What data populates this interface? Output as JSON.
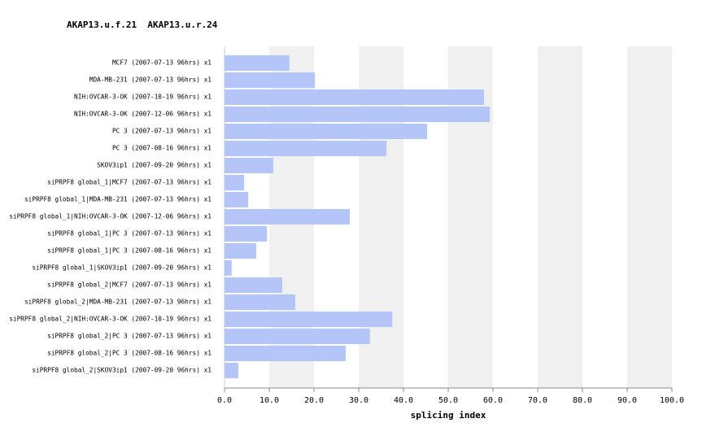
{
  "chart_data": {
    "type": "barh",
    "title": "AKAP13.u.f.21  AKAP13.u.r.24",
    "xlabel": "splicing index",
    "categories": [
      "MCF7 (2007-07-13 96hrs) x1",
      "MDA-MB-231 (2007-07-13 96hrs) x1",
      "NIH:OVCAR-3-OK (2007-10-19 96hrs) x1",
      "NIH:OVCAR-3-OK (2007-12-06 96hrs) x1",
      "PC 3 (2007-07-13 96hrs) x1",
      "PC 3 (2007-08-16 96hrs) x1",
      "SKOV3ip1 (2007-09-20 96hrs) x1",
      "siPRPF8 global_1|MCF7 (2007-07-13 96hrs) x1",
      "siPRPF8 global_1|MDA-MB-231 (2007-07-13 96hrs) x1",
      "siPRPF8 global_1|NIH:OVCAR-3-OK (2007-12-06 96hrs) x1",
      "siPRPF8 global_1|PC 3 (2007-07-13 96hrs) x1",
      "siPRPF8 global_1|PC 3 (2007-08-16 96hrs) x1",
      "siPRPF8 global_1|SKOV3ip1 (2007-09-20 96hrs) x1",
      "siPRPF8 global_2|MCF7 (2007-07-13 96hrs) x1",
      "siPRPF8 global_2|MDA-MB-231 (2007-07-13 96hrs) x1",
      "siPRPF8 global_2|NIH:OVCAR-3-OK (2007-10-19 96hrs) x1",
      "siPRPF8 global_2|PC 3 (2007-07-13 96hrs) x1",
      "siPRPF8 global_2|PC 3 (2007-08-16 96hrs) x1",
      "siPRPF8 global_2|SKOV3ip1 (2007-09-20 96hrs) x1"
    ],
    "values": [
      14.5,
      20.2,
      58.0,
      59.3,
      45.3,
      36.2,
      10.9,
      4.4,
      5.3,
      28.0,
      9.5,
      7.1,
      1.6,
      12.9,
      15.8,
      37.5,
      32.5,
      27.1,
      3.1
    ],
    "color": "#b3c6f7",
    "grid_color": "#f0f0f0",
    "grid": true,
    "xlim": [
      0,
      100
    ],
    "xticks": [
      {
        "value": 0,
        "label": "0.0"
      },
      {
        "value": 10,
        "label": "10.0"
      },
      {
        "value": 20,
        "label": "20.0"
      },
      {
        "value": 30,
        "label": "30.0"
      },
      {
        "value": 40,
        "label": "40.0"
      },
      {
        "value": 50,
        "label": "50.0"
      },
      {
        "value": 60,
        "label": "60.0"
      },
      {
        "value": 70,
        "label": "70.0"
      },
      {
        "value": 80,
        "label": "80.0"
      },
      {
        "value": 90,
        "label": "90.0"
      },
      {
        "value": 100,
        "label": "100.0"
      }
    ]
  }
}
